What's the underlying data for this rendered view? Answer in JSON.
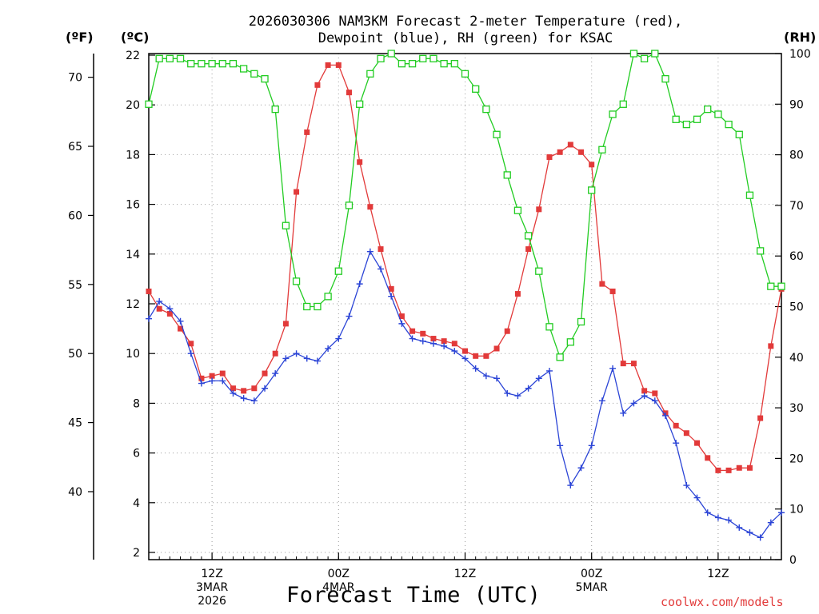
{
  "chart_data": {
    "type": "line",
    "title_line1": "2026030306 NAM3KM Forecast 2-meter Temperature (red),",
    "title_line2": "Dewpoint (blue), RH (green) for KSAC",
    "xlabel": "Forecast Time (UTC)",
    "credit": "coolwx.com/models",
    "units": {
      "fahrenheit": "(ºF)",
      "celsius": "(ºC)",
      "rh": "(RH)"
    },
    "x_unit": "forecast hour from 2026030306",
    "xlim": [
      0,
      60
    ],
    "x": [
      0,
      1,
      2,
      3,
      4,
      5,
      6,
      7,
      8,
      9,
      10,
      11,
      12,
      13,
      14,
      15,
      16,
      17,
      18,
      19,
      20,
      21,
      22,
      23,
      24,
      25,
      26,
      27,
      28,
      29,
      30,
      31,
      32,
      33,
      34,
      35,
      36,
      37,
      38,
      39,
      40,
      41,
      42,
      43,
      44,
      45,
      46,
      47,
      48,
      49,
      50,
      51,
      52,
      53,
      54,
      55,
      56,
      57,
      58,
      59,
      60
    ],
    "x_ticks": [
      {
        "x": 6,
        "lines": [
          "12Z",
          "3MAR",
          "2026"
        ]
      },
      {
        "x": 18,
        "lines": [
          "00Z",
          "4MAR"
        ]
      },
      {
        "x": 30,
        "lines": [
          "12Z"
        ]
      },
      {
        "x": 42,
        "lines": [
          "00Z",
          "5MAR"
        ]
      },
      {
        "x": 54,
        "lines": [
          "12Z"
        ]
      }
    ],
    "left_axis_celsius": {
      "ylim": [
        1.6,
        22
      ],
      "ticks": [
        2,
        4,
        6,
        8,
        10,
        12,
        14,
        16,
        18,
        20,
        22
      ]
    },
    "far_left_axis_fahrenheit": {
      "ticks": [
        40,
        45,
        50,
        55,
        60,
        65,
        70
      ]
    },
    "right_axis_rh": {
      "ylim": [
        0,
        100
      ],
      "ticks": [
        0,
        10,
        20,
        30,
        40,
        50,
        60,
        70,
        80,
        90,
        100
      ]
    },
    "series": [
      {
        "name": "2-meter Temperature",
        "units": "°C",
        "color": "#e23a3a",
        "marker": "filled-square",
        "axis": "celsius",
        "values": [
          12.5,
          11.8,
          11.6,
          11.0,
          10.4,
          9.0,
          9.1,
          9.2,
          8.6,
          8.5,
          8.6,
          9.2,
          10.0,
          11.2,
          16.5,
          18.9,
          20.8,
          21.6,
          21.6,
          20.5,
          17.7,
          15.9,
          14.2,
          12.6,
          11.5,
          10.9,
          10.8,
          10.6,
          10.5,
          10.4,
          10.1,
          9.9,
          9.9,
          10.2,
          10.9,
          12.4,
          14.2,
          15.8,
          17.9,
          18.1,
          18.4,
          18.1,
          17.6,
          12.8,
          12.5,
          9.6,
          9.6,
          8.5,
          8.4,
          7.6,
          7.1,
          6.8,
          6.4,
          5.8,
          5.3,
          5.3,
          5.4,
          5.4,
          7.4,
          10.3,
          12.6
        ]
      },
      {
        "name": "Dewpoint",
        "units": "°C",
        "color": "#2b44d6",
        "marker": "plus",
        "axis": "celsius",
        "values": [
          11.4,
          12.1,
          11.8,
          11.3,
          10.0,
          8.8,
          8.9,
          8.9,
          8.4,
          8.2,
          8.1,
          8.6,
          9.2,
          9.8,
          10.0,
          9.8,
          9.7,
          10.2,
          10.6,
          11.5,
          12.8,
          14.1,
          13.4,
          12.3,
          11.2,
          10.6,
          10.5,
          10.4,
          10.3,
          10.1,
          9.8,
          9.4,
          9.1,
          9.0,
          8.4,
          8.3,
          8.6,
          9.0,
          9.3,
          6.3,
          4.7,
          5.4,
          6.3,
          8.1,
          9.4,
          7.6,
          8.0,
          8.3,
          8.1,
          7.5,
          6.4,
          4.7,
          4.2,
          3.6,
          3.4,
          3.3,
          3.0,
          2.8,
          2.6,
          3.2,
          3.6
        ]
      },
      {
        "name": "RH",
        "units": "%",
        "color": "#22cc22",
        "marker": "open-square",
        "axis": "rh",
        "values": [
          90,
          99,
          99,
          99,
          98,
          98,
          98,
          98,
          98,
          97,
          96,
          95,
          89,
          66,
          55,
          50,
          50,
          52,
          57,
          70,
          90,
          96,
          99,
          100,
          98,
          98,
          99,
          99,
          98,
          98,
          96,
          93,
          89,
          84,
          76,
          69,
          64,
          57,
          46,
          40,
          43,
          47,
          73,
          81,
          88,
          90,
          100,
          99,
          100,
          95,
          87,
          86,
          87,
          89,
          88,
          86,
          84,
          72,
          61,
          54,
          54
        ]
      }
    ]
  }
}
